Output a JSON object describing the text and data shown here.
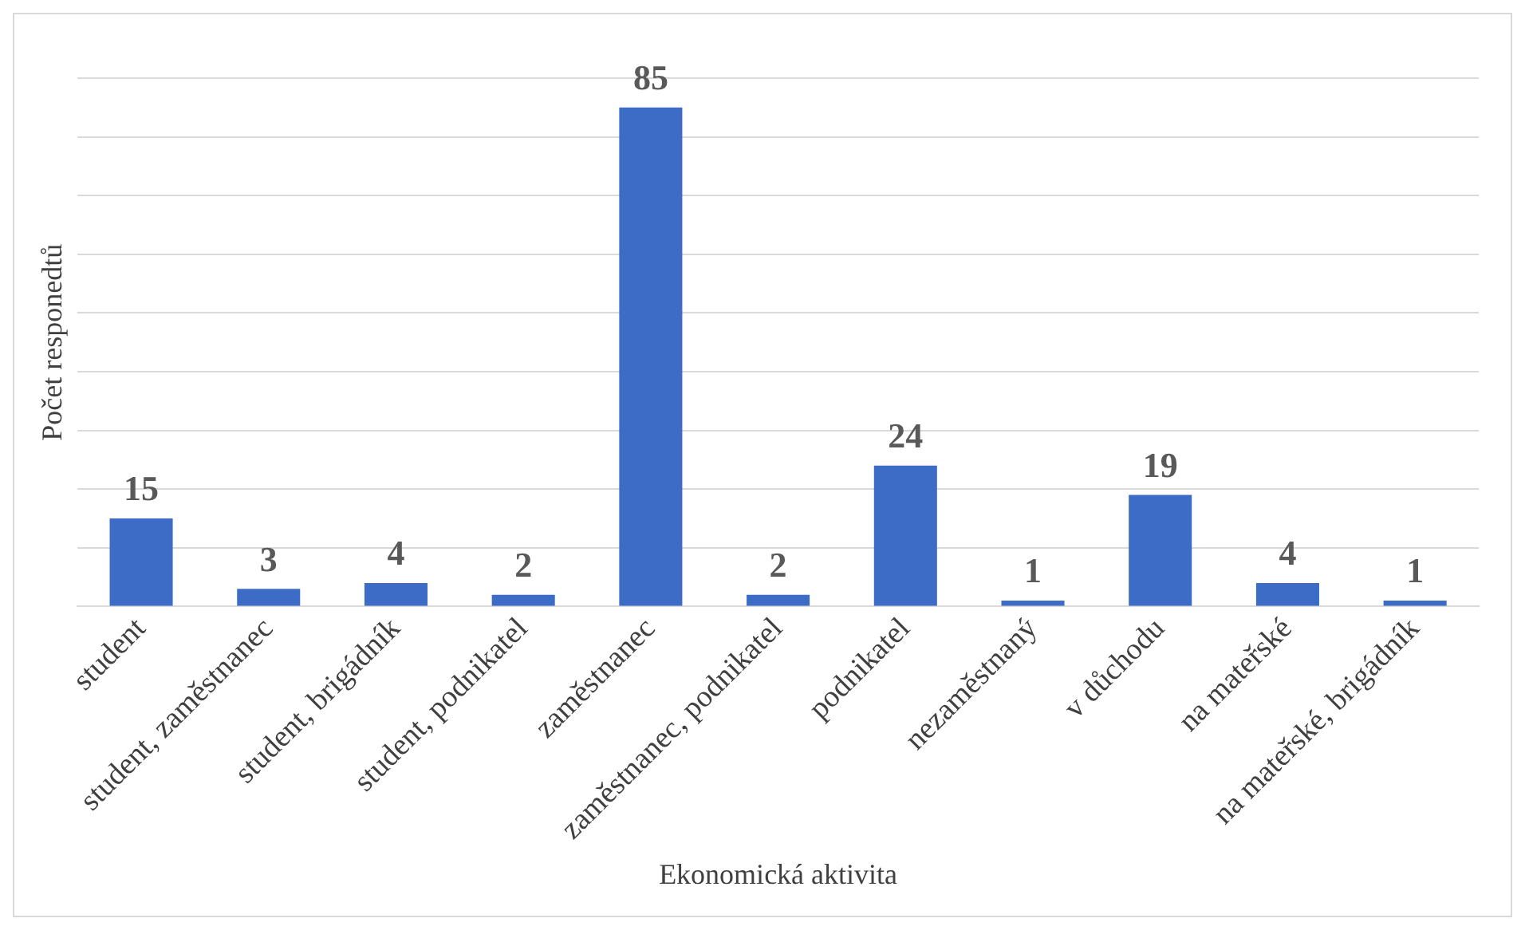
{
  "chart_data": {
    "type": "bar",
    "xlabel": "Ekonomická aktivita",
    "ylabel": "Počet responedtů",
    "categories": [
      "student",
      "student, zaměstnanec",
      "student, brigádník",
      "student, podnikatel",
      "zaměstnanec",
      "zaměstnanec, podnikatel",
      "podnikatel",
      "nezaměstnaný",
      "v důchodu",
      "na mateřské",
      "na mateřské, brigádník"
    ],
    "values": [
      15,
      3,
      4,
      2,
      85,
      2,
      24,
      1,
      19,
      4,
      1
    ],
    "color": "#3d6cc6",
    "ylim": [
      0,
      90
    ],
    "yticks": [
      {
        "value": 0,
        "label": null
      },
      {
        "value": 10,
        "label": null
      },
      {
        "value": 20,
        "label": null
      },
      {
        "value": 30,
        "label": null
      },
      {
        "value": 40,
        "label": null
      },
      {
        "value": 50,
        "label": null
      },
      {
        "value": 60,
        "label": null
      },
      {
        "value": 70,
        "label": null
      },
      {
        "value": 80,
        "label": null
      },
      {
        "value": 90,
        "label": null
      }
    ],
    "tick_labels": "x",
    "grid": "y",
    "legend": false,
    "data_labels": true
  }
}
